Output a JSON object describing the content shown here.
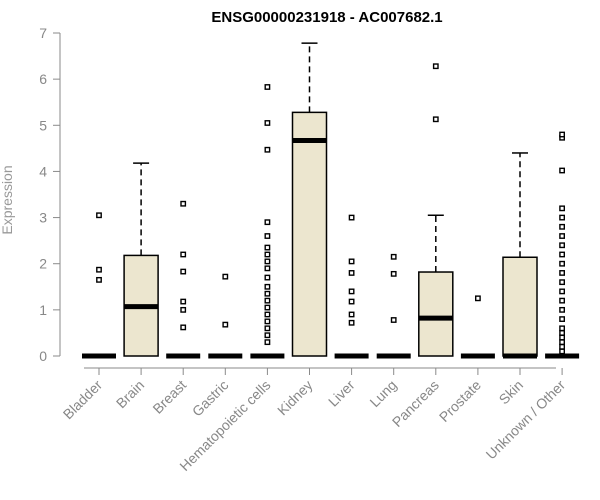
{
  "chart_data": {
    "type": "box",
    "title": "ENSG00000231918 - AC007682.1",
    "ylabel": "Expression",
    "xlabel": "",
    "ylim": [
      0,
      7
    ],
    "yticks": [
      0,
      1,
      2,
      3,
      4,
      5,
      6,
      7
    ],
    "categories": [
      "Bladder",
      "Brain",
      "Breast",
      "Gastric",
      "Hematopoietic cells",
      "Kidney",
      "Liver",
      "Lung",
      "Pancreas",
      "Prostate",
      "Skin",
      "Unknown / Other"
    ],
    "boxes": [
      {
        "category": "Bladder",
        "q1": 0,
        "median": 0,
        "q3": 0,
        "whisker_low": 0,
        "whisker_high": 0,
        "outliers": [
          1.65,
          1.87,
          3.05
        ]
      },
      {
        "category": "Brain",
        "q1": 0,
        "median": 1.07,
        "q3": 2.18,
        "whisker_low": 0,
        "whisker_high": 4.18,
        "outliers": []
      },
      {
        "category": "Breast",
        "q1": 0,
        "median": 0,
        "q3": 0,
        "whisker_low": 0,
        "whisker_high": 0,
        "outliers": [
          0.62,
          1.0,
          1.18,
          1.83,
          2.2,
          3.3
        ]
      },
      {
        "category": "Gastric",
        "q1": 0,
        "median": 0,
        "q3": 0,
        "whisker_low": 0,
        "whisker_high": 0,
        "outliers": [
          0.68,
          1.72
        ]
      },
      {
        "category": "Hematopoietic cells",
        "q1": 0,
        "median": 0,
        "q3": 0,
        "whisker_low": 0,
        "whisker_high": 0,
        "outliers": [
          0.3,
          0.45,
          0.6,
          0.75,
          0.9,
          1.05,
          1.2,
          1.35,
          1.5,
          1.7,
          1.9,
          2.05,
          2.2,
          2.35,
          2.6,
          2.9,
          4.47,
          5.05,
          5.83
        ]
      },
      {
        "category": "Kidney",
        "q1": 0,
        "median": 4.67,
        "q3": 5.28,
        "whisker_low": 0,
        "whisker_high": 6.78,
        "outliers": []
      },
      {
        "category": "Liver",
        "q1": 0,
        "median": 0,
        "q3": 0,
        "whisker_low": 0,
        "whisker_high": 0,
        "outliers": [
          0.72,
          0.9,
          1.18,
          1.4,
          1.8,
          2.05,
          3.0
        ]
      },
      {
        "category": "Lung",
        "q1": 0,
        "median": 0,
        "q3": 0,
        "whisker_low": 0,
        "whisker_high": 0,
        "outliers": [
          0.78,
          1.78,
          2.15
        ]
      },
      {
        "category": "Pancreas",
        "q1": 0,
        "median": 0.82,
        "q3": 1.82,
        "whisker_low": 0,
        "whisker_high": 3.05,
        "outliers": [
          5.13,
          6.28
        ]
      },
      {
        "category": "Prostate",
        "q1": 0,
        "median": 0,
        "q3": 0,
        "whisker_low": 0,
        "whisker_high": 0,
        "outliers": [
          1.25
        ]
      },
      {
        "category": "Skin",
        "q1": 0,
        "median": 0,
        "q3": 2.14,
        "whisker_low": 0,
        "whisker_high": 4.4,
        "outliers": []
      },
      {
        "category": "Unknown / Other",
        "q1": 0,
        "median": 0,
        "q3": 0,
        "whisker_low": 0,
        "whisker_high": 0,
        "outliers": [
          0.1,
          0.2,
          0.3,
          0.4,
          0.5,
          0.6,
          0.8,
          1.0,
          1.2,
          1.4,
          1.6,
          1.8,
          2.0,
          2.2,
          2.4,
          2.6,
          2.8,
          3.0,
          3.2,
          4.02,
          4.73,
          4.8
        ]
      }
    ],
    "colors": {
      "box_fill": "#ece6cf",
      "stroke": "#000000",
      "axis": "#8a8a8a",
      "tick_text": "#888888"
    },
    "grid": false
  }
}
